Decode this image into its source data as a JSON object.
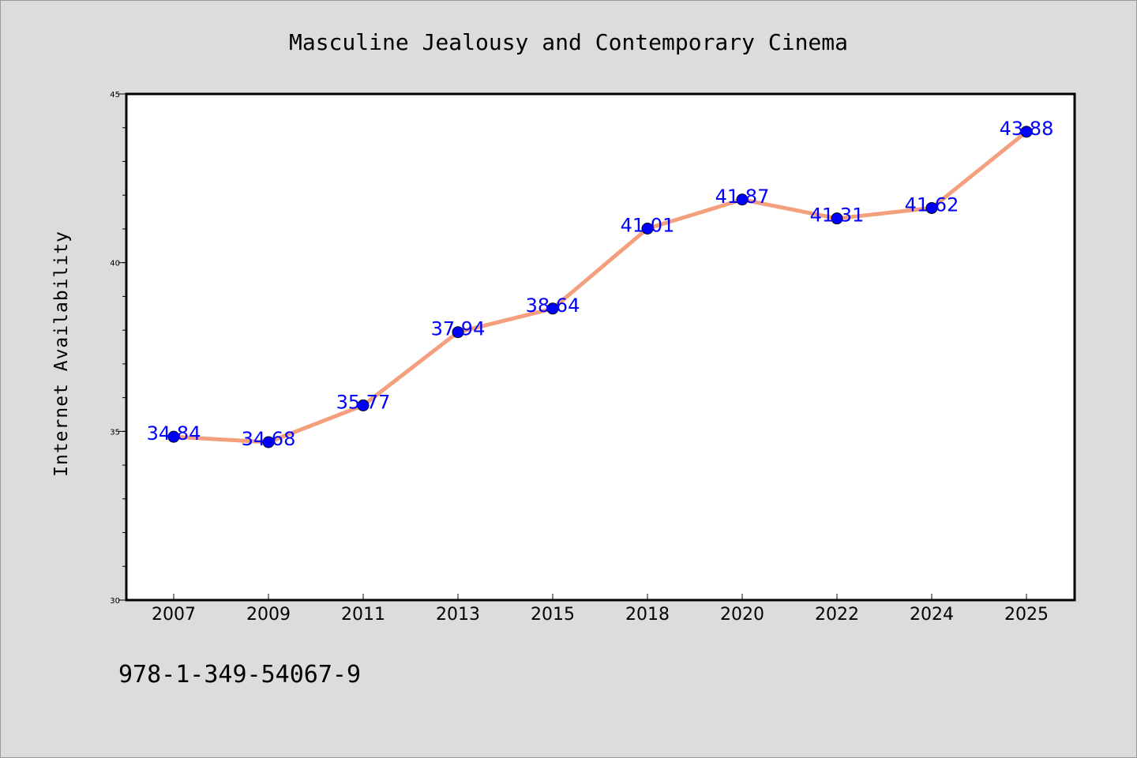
{
  "colors": {
    "background": "#dcdcdc",
    "plot_bg": "#ffffff",
    "line": "#f4a07e",
    "marker": "#0000ff",
    "label": "#0000ff"
  },
  "footer": {
    "isbn": "978-1-349-54067-9"
  },
  "chart_data": {
    "type": "line",
    "title": "Masculine Jealousy and Contemporary Cinema",
    "xlabel": "",
    "ylabel": "Internet Availability",
    "categories": [
      "2007",
      "2009",
      "2011",
      "2013",
      "2015",
      "2018",
      "2020",
      "2022",
      "2024",
      "2025"
    ],
    "values": [
      34.84,
      34.68,
      35.77,
      37.94,
      38.64,
      41.01,
      41.87,
      41.31,
      41.62,
      43.88
    ],
    "data_labels": [
      "34.84",
      "34.68",
      "35.77",
      "37.94",
      "38.64",
      "41.01",
      "41.87",
      "41.31",
      "41.62",
      "43.88"
    ],
    "ylim": [
      30,
      45
    ],
    "yticks": [
      "30",
      "35",
      "40",
      "45"
    ],
    "grid": false,
    "legend": "none"
  }
}
